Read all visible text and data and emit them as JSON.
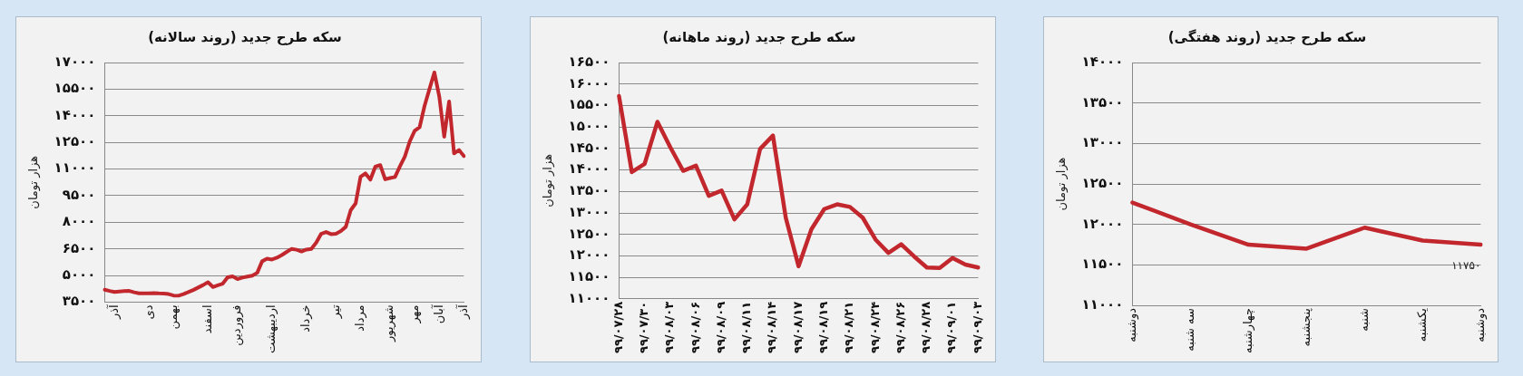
{
  "chart_data": [
    {
      "type": "line",
      "title": "سکه طرح جدید (روند سالانه)",
      "ylabel": "هزار تومان",
      "grid": "y",
      "legend": false,
      "marker": "none",
      "line_style": "solid",
      "categories": [
        null,
        null,
        "آذر",
        null,
        null,
        null,
        null,
        null,
        null,
        "دی",
        null,
        null,
        null,
        null,
        "بهمن",
        null,
        null,
        null,
        null,
        null,
        null,
        "اسفند",
        null,
        null,
        null,
        null,
        null,
        "فروردین",
        null,
        null,
        null,
        null,
        null,
        null,
        "اردیبهشت",
        null,
        null,
        null,
        null,
        null,
        null,
        "خرداد",
        null,
        null,
        null,
        null,
        null,
        "تیر",
        null,
        null,
        null,
        null,
        "مرداد",
        null,
        null,
        null,
        null,
        null,
        "شهریور",
        null,
        null,
        null,
        null,
        "مهر",
        null,
        null,
        null,
        null,
        "آبان",
        null,
        null,
        null,
        null,
        "آذر"
      ],
      "ylim": [
        3500,
        17000
      ],
      "yticks": [
        {
          "value": 3500,
          "label": "۳۵۰۰"
        },
        {
          "value": 5000,
          "label": "۵۰۰۰"
        },
        {
          "value": 6500,
          "label": "۶۵۰۰"
        },
        {
          "value": 8000,
          "label": "۸۰۰۰"
        },
        {
          "value": 9500,
          "label": "۹۵۰۰"
        },
        {
          "value": 11000,
          "label": "۱۱۰۰۰"
        },
        {
          "value": 12500,
          "label": "۱۲۵۰۰"
        },
        {
          "value": 14000,
          "label": "۱۴۰۰۰"
        },
        {
          "value": 15500,
          "label": "۱۵۵۰۰"
        },
        {
          "value": 17000,
          "label": "۱۷۰۰۰"
        }
      ],
      "series": [
        {
          "color": "#c1272d",
          "values": [
            4200,
            4130,
            4070,
            4100,
            4120,
            4130,
            4050,
            3990,
            3990,
            4000,
            4010,
            3990,
            3980,
            3950,
            3870,
            3860,
            3950,
            4060,
            4180,
            4320,
            4460,
            4620,
            4350,
            4450,
            4540,
            4900,
            4950,
            4800,
            4880,
            4940,
            4990,
            5150,
            5800,
            5950,
            5900,
            6000,
            6150,
            6330,
            6500,
            6450,
            6350,
            6460,
            6500,
            6850,
            7350,
            7450,
            7330,
            7350,
            7500,
            7740,
            8680,
            9060,
            10560,
            10750,
            10400,
            11130,
            11220,
            10420,
            10490,
            10550,
            11150,
            11700,
            12550,
            13150,
            13350,
            14550,
            15500,
            16440,
            15080,
            12820,
            14800,
            11880,
            12070,
            11730
          ]
        }
      ]
    },
    {
      "type": "line",
      "title": "سکه طرح جدید (روند ماهانه)",
      "ylabel": "هزار تومان",
      "grid": "y",
      "legend": false,
      "marker": "none",
      "line_style": "solid",
      "categories": [
        "۹۹/۰۷/۲۸",
        null,
        "۹۹/۰۷/۳۰",
        null,
        "۹۹/۰۸/۰۳",
        null,
        "۹۹/۰۸/۰۶",
        null,
        "۹۹/۰۸/۰۹",
        null,
        "۹۹/۰۸/۱۱",
        null,
        "۹۹/۰۸/۱۴",
        null,
        "۹۹/۰۸/۱۷",
        null,
        "۹۹/۰۸/۱۹",
        null,
        "۹۹/۰۸/۲۱",
        null,
        "۹۹/۰۸/۲۴",
        null,
        "۹۹/۰۸/۲۶",
        null,
        "۹۹/۰۸/۲۸",
        null,
        "۹۹/۰۹/۰۱",
        null,
        "۹۹/۰۹/۰۳"
      ],
      "ylim": [
        11000,
        16500
      ],
      "yticks": [
        {
          "value": 11000,
          "label": "۱۱۰۰۰"
        },
        {
          "value": 11500,
          "label": "۱۱۵۰۰"
        },
        {
          "value": 12000,
          "label": "۱۲۰۰۰"
        },
        {
          "value": 12500,
          "label": "۱۲۵۰۰"
        },
        {
          "value": 13000,
          "label": "۱۳۰۰۰"
        },
        {
          "value": 13500,
          "label": "۱۳۵۰۰"
        },
        {
          "value": 14000,
          "label": "۱۴۰۰۰"
        },
        {
          "value": 14500,
          "label": "۱۴۵۰۰"
        },
        {
          "value": 15000,
          "label": "۱۵۰۰۰"
        },
        {
          "value": 15500,
          "label": "۱۵۵۰۰"
        },
        {
          "value": 16000,
          "label": "۱۶۰۰۰"
        },
        {
          "value": 16500,
          "label": "۱۶۵۰۰"
        }
      ],
      "series": [
        {
          "color": "#c1272d",
          "values": [
            15720,
            13950,
            14140,
            15120,
            14530,
            13980,
            14100,
            13400,
            13520,
            12850,
            13200,
            14490,
            14800,
            12890,
            11760,
            12620,
            13090,
            13200,
            13140,
            12890,
            12380,
            12070,
            12270,
            11990,
            11730,
            11720,
            11950,
            11800,
            11730
          ]
        }
      ]
    },
    {
      "type": "line",
      "title": "سکه طرح جدید (روند هفتگی)",
      "ylabel": "هزار تومان",
      "grid": "y",
      "legend": false,
      "marker": "none",
      "line_style": "solid",
      "categories": [
        "دوشنبه",
        "سه شنبه",
        "چهارشنبه",
        "پنجشنبه",
        "شنبه",
        "یکشنبه",
        "دوشنبه"
      ],
      "ylim": [
        11000,
        14000
      ],
      "yticks": [
        {
          "value": 11000,
          "label": "۱۱۰۰۰"
        },
        {
          "value": 11500,
          "label": "۱۱۵۰۰"
        },
        {
          "value": 12000,
          "label": "۱۲۰۰۰"
        },
        {
          "value": 12500,
          "label": "۱۲۵۰۰"
        },
        {
          "value": 13000,
          "label": "۱۳۰۰۰"
        },
        {
          "value": 13500,
          "label": "۱۳۵۰۰"
        },
        {
          "value": 14000,
          "label": "۱۴۰۰۰"
        }
      ],
      "series": [
        {
          "color": "#c1272d",
          "values": [
            12270,
            12000,
            11750,
            11700,
            11960,
            11800,
            11750
          ],
          "value_labels": [
            null,
            null,
            null,
            null,
            null,
            null,
            "۱۱۷۵۰"
          ]
        }
      ]
    }
  ]
}
